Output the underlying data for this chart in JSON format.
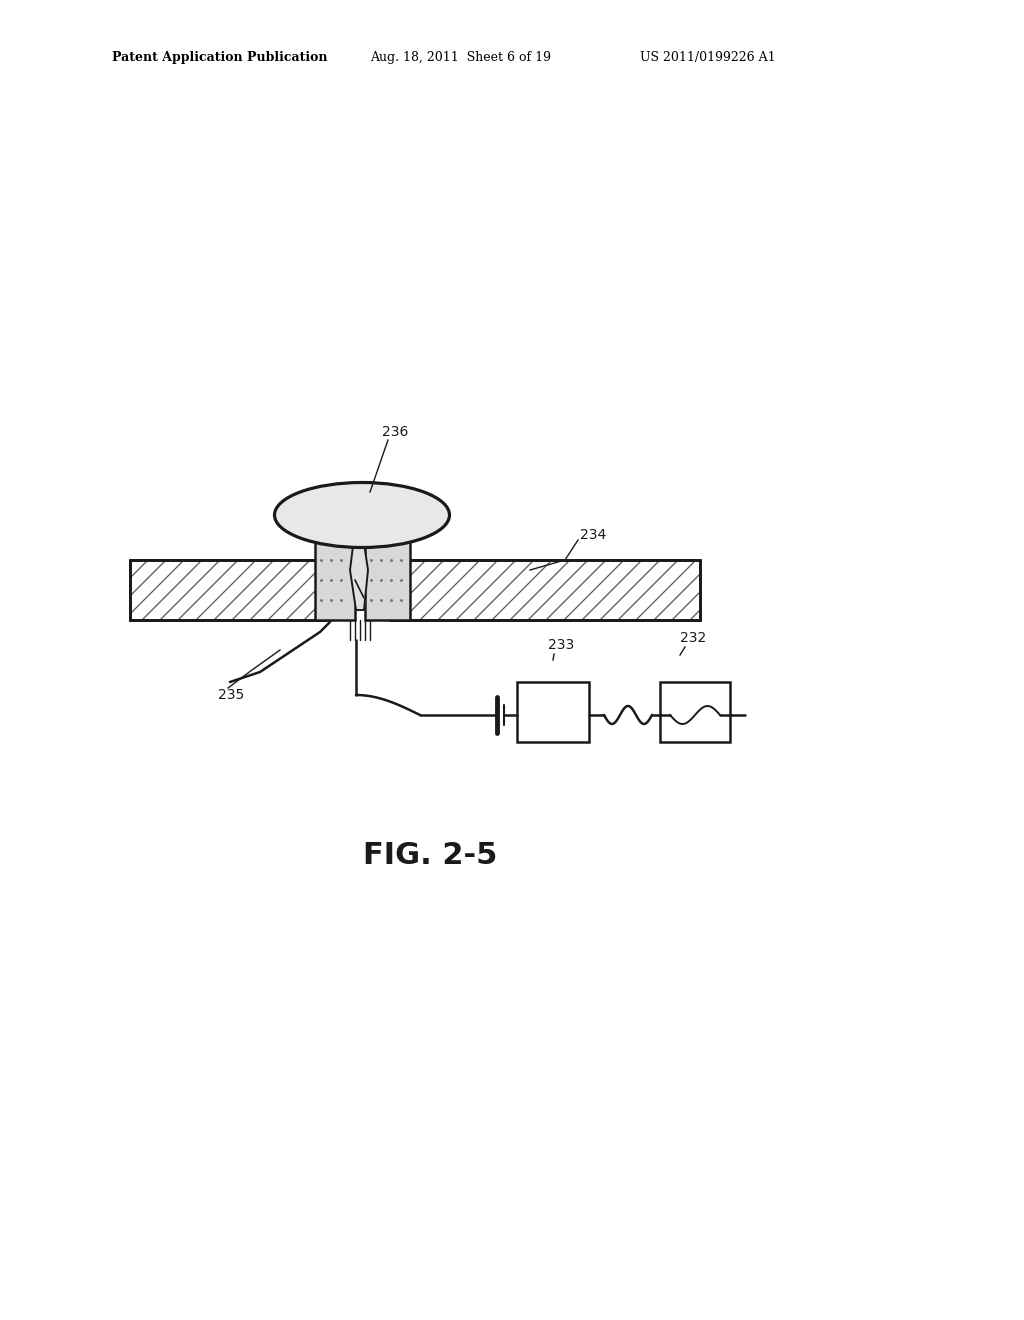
{
  "bg_color": "#ffffff",
  "line_color": "#1a1a1a",
  "header_left": "Patent Application Publication",
  "header_mid": "Aug. 18, 2011  Sheet 6 of 19",
  "header_right": "US 2011/0199226 A1",
  "fig_label": "FIG. 2-5",
  "label_236": "236",
  "label_234": "234",
  "label_235": "235",
  "label_233": "233",
  "label_232": "232"
}
